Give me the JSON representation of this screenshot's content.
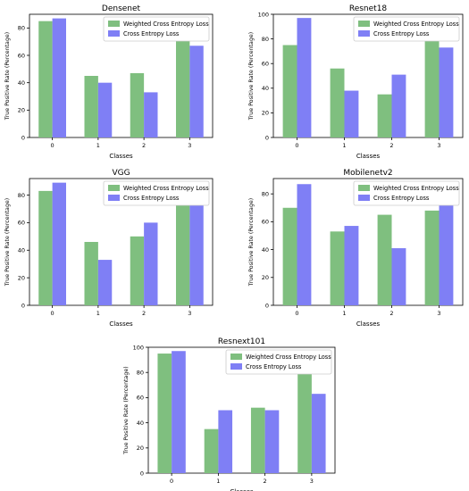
{
  "colors": {
    "weighted": "#7fbf7f",
    "cross": "#7f7ff5"
  },
  "chart_data": [
    {
      "type": "bar",
      "title": "Densenet",
      "xlabel": "Classes",
      "ylabel": "True Positive Rate (Percentage)",
      "categories": [
        "0",
        "1",
        "2",
        "3"
      ],
      "ylim": [
        0,
        90
      ],
      "yticks": [
        0,
        20,
        40,
        60,
        80
      ],
      "legend": "top-right",
      "series": [
        {
          "name": "Weighted Cross Entropy Loss",
          "values": [
            85,
            45,
            47,
            85
          ]
        },
        {
          "name": "Cross Entropy Loss",
          "values": [
            87,
            40,
            33,
            67
          ]
        }
      ]
    },
    {
      "type": "bar",
      "title": "Resnet18",
      "xlabel": "Classes",
      "ylabel": "True Positive Rate (Percentage)",
      "categories": [
        "0",
        "1",
        "2",
        "3"
      ],
      "ylim": [
        0,
        100
      ],
      "yticks": [
        0,
        20,
        40,
        60,
        80,
        100
      ],
      "legend": "top-right",
      "series": [
        {
          "name": "Weighted Cross Entropy Loss",
          "values": [
            75,
            56,
            35,
            80
          ]
        },
        {
          "name": "Cross Entropy Loss",
          "values": [
            97,
            38,
            51,
            73
          ]
        }
      ]
    },
    {
      "type": "bar",
      "title": "VGG",
      "xlabel": "Classes",
      "ylabel": "True Positive Rate (Percentage)",
      "categories": [
        "0",
        "1",
        "2",
        "3"
      ],
      "ylim": [
        0,
        92
      ],
      "yticks": [
        0,
        20,
        40,
        60,
        80
      ],
      "legend": "top-right",
      "series": [
        {
          "name": "Weighted Cross Entropy Loss",
          "values": [
            83,
            46,
            50,
            75
          ]
        },
        {
          "name": "Cross Entropy Loss",
          "values": [
            89,
            33,
            60,
            82
          ]
        }
      ]
    },
    {
      "type": "bar",
      "title": "Mobilenetv2",
      "xlabel": "Classes",
      "ylabel": "True Positive Rate (Percentage)",
      "categories": [
        "0",
        "1",
        "2",
        "3"
      ],
      "ylim": [
        0,
        91
      ],
      "yticks": [
        0,
        20,
        40,
        60,
        80
      ],
      "legend": "top-right",
      "series": [
        {
          "name": "Weighted Cross Entropy Loss",
          "values": [
            70,
            53,
            65,
            68
          ]
        },
        {
          "name": "Cross Entropy Loss",
          "values": [
            87,
            57,
            41,
            77
          ]
        }
      ]
    },
    {
      "type": "bar",
      "title": "Resnext101",
      "xlabel": "Classes",
      "ylabel": "True Positive Rate (Percentage)",
      "categories": [
        "0",
        "1",
        "2",
        "3"
      ],
      "ylim": [
        0,
        100
      ],
      "yticks": [
        0,
        20,
        40,
        60,
        80,
        100
      ],
      "legend": "top-right",
      "series": [
        {
          "name": "Weighted Cross Entropy Loss",
          "values": [
            95,
            35,
            52,
            87
          ]
        },
        {
          "name": "Cross Entropy Loss",
          "values": [
            97,
            50,
            50,
            63
          ]
        }
      ]
    }
  ]
}
